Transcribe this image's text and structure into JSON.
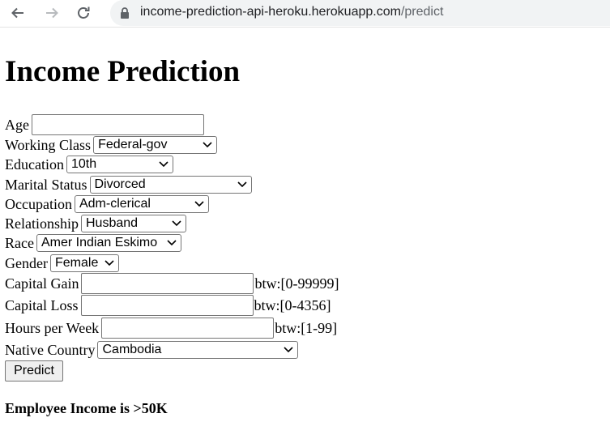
{
  "browser": {
    "url_host": "income-prediction-api-heroku.herokuapp.com",
    "url_path": "/predict"
  },
  "page": {
    "title": "Income Prediction"
  },
  "form": {
    "age": {
      "label": "Age",
      "value": ""
    },
    "working_class": {
      "label": "Working Class",
      "selected": "Federal-gov"
    },
    "education": {
      "label": "Education",
      "selected": "10th"
    },
    "marital_status": {
      "label": "Marital Status",
      "selected": "Divorced"
    },
    "occupation": {
      "label": "Occupation",
      "selected": "Adm-clerical"
    },
    "relationship": {
      "label": "Relationship",
      "selected": "Husband"
    },
    "race": {
      "label": "Race",
      "selected": "Amer Indian Eskimo"
    },
    "gender": {
      "label": "Gender",
      "selected": "Female"
    },
    "capital_gain": {
      "label": "Capital Gain",
      "value": "",
      "hint": "btw:[0-99999]"
    },
    "capital_loss": {
      "label": "Capital Loss",
      "value": "",
      "hint": "btw:[0-4356]"
    },
    "hours_per_week": {
      "label": "Hours per Week",
      "value": "",
      "hint": "btw:[1-99]"
    },
    "native_country": {
      "label": "Native Country",
      "selected": "Cambodia"
    },
    "submit_label": "Predict"
  },
  "result": {
    "text": "Employee Income is >50K"
  }
}
